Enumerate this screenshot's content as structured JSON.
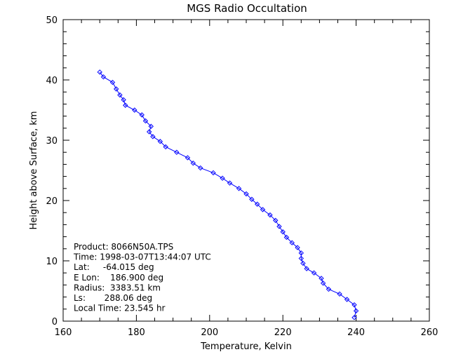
{
  "chart_data": {
    "type": "line",
    "title": "MGS Radio Occultation",
    "xlabel": "Temperature, Kelvin",
    "ylabel": "Height above Surface, km",
    "xlim": [
      160,
      260
    ],
    "ylim": [
      0,
      50
    ],
    "xticks": [
      "160",
      "180",
      "200",
      "220",
      "240",
      "260"
    ],
    "yticks": [
      "0",
      "10",
      "20",
      "30",
      "40",
      "50"
    ],
    "grid": false,
    "line_color": "#0000ff",
    "marker": "diamond",
    "points": [
      [
        170.0,
        41.3
      ],
      [
        171.0,
        40.5
      ],
      [
        173.5,
        39.6
      ],
      [
        174.5,
        38.5
      ],
      [
        175.5,
        37.5
      ],
      [
        176.5,
        36.7
      ],
      [
        177.0,
        35.8
      ],
      [
        179.5,
        35.0
      ],
      [
        181.5,
        34.2
      ],
      [
        182.5,
        33.2
      ],
      [
        184.0,
        32.3
      ],
      [
        183.5,
        31.4
      ],
      [
        184.5,
        30.6
      ],
      [
        186.5,
        29.8
      ],
      [
        188.0,
        28.9
      ],
      [
        191.0,
        28.0
      ],
      [
        194.0,
        27.1
      ],
      [
        195.5,
        26.2
      ],
      [
        197.5,
        25.4
      ],
      [
        201.0,
        24.6
      ],
      [
        203.5,
        23.7
      ],
      [
        205.5,
        22.9
      ],
      [
        208.0,
        22.0
      ],
      [
        210.0,
        21.1
      ],
      [
        211.5,
        20.2
      ],
      [
        213.0,
        19.4
      ],
      [
        214.5,
        18.5
      ],
      [
        216.5,
        17.6
      ],
      [
        218.0,
        16.7
      ],
      [
        219.0,
        15.7
      ],
      [
        220.0,
        14.8
      ],
      [
        221.0,
        13.9
      ],
      [
        222.5,
        13.0
      ],
      [
        224.0,
        12.2
      ],
      [
        225.0,
        11.3
      ],
      [
        225.0,
        10.4
      ],
      [
        225.5,
        9.6
      ],
      [
        226.5,
        8.7
      ],
      [
        228.5,
        8.0
      ],
      [
        230.5,
        7.1
      ],
      [
        231.0,
        6.3
      ],
      [
        232.5,
        5.3
      ],
      [
        235.5,
        4.5
      ],
      [
        237.5,
        3.6
      ],
      [
        239.5,
        2.7
      ],
      [
        240.0,
        1.7
      ],
      [
        239.5,
        0.6
      ]
    ],
    "annotations": [
      "Product: 8066N50A.TPS",
      "Time: 1998-03-07T13:44:07 UTC",
      "Lat:     -64.015 deg",
      "E Lon:    186.900 deg",
      "Radius:  3383.51 km",
      "Ls:       288.06 deg",
      "Local Time: 23.545 hr"
    ]
  }
}
